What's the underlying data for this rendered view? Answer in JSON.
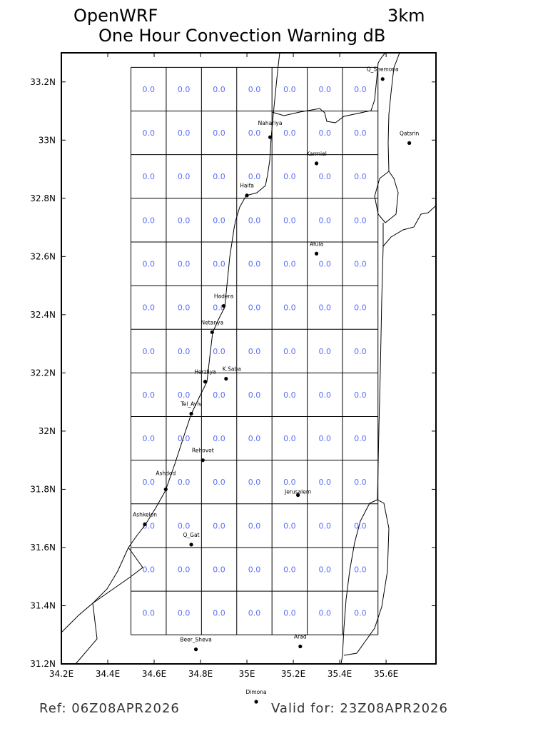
{
  "header": {
    "model": "OpenWRF",
    "resolution": "3km",
    "title": "One Hour Convection Warning dB"
  },
  "footer": {
    "ref": "Ref: 06Z08APR2026",
    "valid": "Valid for: 23Z08APR2026"
  },
  "map": {
    "lon_range": [
      34.2,
      35.815
    ],
    "lat_range": [
      31.2,
      33.3
    ],
    "x_ticks": [
      {
        "v": 34.2,
        "label": "34.2E"
      },
      {
        "v": 34.4,
        "label": "34.4E"
      },
      {
        "v": 34.6,
        "label": "34.6E"
      },
      {
        "v": 34.8,
        "label": "34.8E"
      },
      {
        "v": 35.0,
        "label": "35E"
      },
      {
        "v": 35.2,
        "label": "35.2E"
      },
      {
        "v": 35.4,
        "label": "35.4E"
      },
      {
        "v": 35.6,
        "label": "35.6E"
      }
    ],
    "y_ticks": [
      {
        "v": 31.2,
        "label": "31.2N"
      },
      {
        "v": 31.4,
        "label": "31.4N"
      },
      {
        "v": 31.6,
        "label": "31.6N"
      },
      {
        "v": 31.8,
        "label": "31.8N"
      },
      {
        "v": 32.0,
        "label": "32N"
      },
      {
        "v": 32.2,
        "label": "32.2N"
      },
      {
        "v": 32.4,
        "label": "32.4N"
      },
      {
        "v": 32.6,
        "label": "32.6N"
      },
      {
        "v": 32.8,
        "label": "32.8N"
      },
      {
        "v": 33.0,
        "label": "33N"
      },
      {
        "v": 33.2,
        "label": "33.2N"
      }
    ],
    "grid": {
      "lon_edges": [
        34.5,
        34.652,
        34.804,
        34.956,
        35.108,
        35.26,
        35.412,
        35.565
      ],
      "lat_edges": [
        31.3,
        31.45,
        31.6,
        31.75,
        31.9,
        32.05,
        32.2,
        32.35,
        32.5,
        32.65,
        32.8,
        32.95,
        33.1,
        33.25
      ],
      "values": [
        [
          "0.0",
          "0.0",
          "0.0",
          "0.0",
          "0.0",
          "0.0",
          "0.0"
        ],
        [
          "0.0",
          "0.0",
          "0.0",
          "0.0",
          "0.0",
          "0.0",
          "0.0"
        ],
        [
          "0.0",
          "0.0",
          "0.0",
          "0.0",
          "0.0",
          "0.0",
          "0.0"
        ],
        [
          "0.0",
          "0.0",
          "0.0",
          "0.0",
          "0.0",
          "0.0",
          "0.0"
        ],
        [
          "0.0",
          "0.0",
          "0.0",
          "0.0",
          "0.0",
          "0.0",
          "0.0"
        ],
        [
          "0.0",
          "0.0",
          "0.0",
          "0.0",
          "0.0",
          "0.0",
          "0.0"
        ],
        [
          "0.0",
          "0.0",
          "0.0",
          "0.0",
          "0.0",
          "0.0",
          "0.0"
        ],
        [
          "0.0",
          "0.0",
          "0.0",
          "0.0",
          "0.0",
          "0.0",
          "0.0"
        ],
        [
          "0.0",
          "0.0",
          "0.0",
          "0.0",
          "0.0",
          "0.0",
          "0.0"
        ],
        [
          "0.0",
          "0.0",
          "0.0",
          "0.0",
          "0.0",
          "0.0",
          "0.0"
        ],
        [
          "0.0",
          "0.0",
          "0.0",
          "0.0",
          "0.0",
          "0.0",
          "0.0"
        ],
        [
          "0.0",
          "0.0",
          "0.0",
          "0.0",
          "0.0",
          "0.0",
          "0.0"
        ],
        [
          "0.0",
          "0.0",
          "0.0",
          "0.0",
          "0.0",
          "0.0",
          "0.0"
        ]
      ],
      "value_color": "#5b6ef5"
    },
    "cities": [
      {
        "name": "Q_Shemona",
        "lon": 35.585,
        "lat": 33.21
      },
      {
        "name": "Qatsrin",
        "lon": 35.7,
        "lat": 32.99
      },
      {
        "name": "Nahariya",
        "lon": 35.1,
        "lat": 33.01
      },
      {
        "name": "Karmiel",
        "lon": 35.3,
        "lat": 32.92
      },
      {
        "name": "Haifa",
        "lon": 35.0,
        "lat": 32.81
      },
      {
        "name": "Afula",
        "lon": 35.3,
        "lat": 32.61
      },
      {
        "name": "Hadera",
        "lon": 34.9,
        "lat": 32.43
      },
      {
        "name": "Netanya",
        "lon": 34.85,
        "lat": 32.34
      },
      {
        "name": "Herzliya",
        "lon": 34.82,
        "lat": 32.17
      },
      {
        "name": "K.Saba",
        "lon": 34.91,
        "lat": 32.18
      },
      {
        "name": "Tel_Aviv",
        "lon": 34.76,
        "lat": 32.06
      },
      {
        "name": "Rehovot",
        "lon": 34.81,
        "lat": 31.9
      },
      {
        "name": "Ashdod",
        "lon": 34.65,
        "lat": 31.8
      },
      {
        "name": "Jerusalem",
        "lon": 35.22,
        "lat": 31.78
      },
      {
        "name": "Ashkelon",
        "lon": 34.56,
        "lat": 31.68
      },
      {
        "name": "Q_Gat",
        "lon": 34.76,
        "lat": 31.61
      },
      {
        "name": "Beer_Sheva",
        "lon": 34.78,
        "lat": 31.25
      },
      {
        "name": "Arad",
        "lon": 35.23,
        "lat": 31.26
      },
      {
        "name": "Dimona",
        "lon": 35.04,
        "lat": 31.07
      }
    ]
  }
}
